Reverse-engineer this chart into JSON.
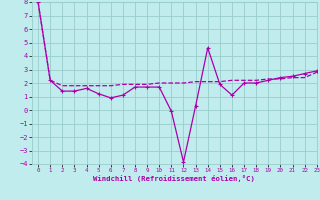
{
  "xlabel": "Windchill (Refroidissement éolien,°C)",
  "xlim": [
    -0.5,
    23
  ],
  "ylim": [
    -4,
    8
  ],
  "xticks": [
    0,
    1,
    2,
    3,
    4,
    5,
    6,
    7,
    8,
    9,
    10,
    11,
    12,
    13,
    14,
    15,
    16,
    17,
    18,
    19,
    20,
    21,
    22,
    23
  ],
  "yticks": [
    -4,
    -3,
    -2,
    -1,
    0,
    1,
    2,
    3,
    4,
    5,
    6,
    7,
    8
  ],
  "bg_color": "#c0ecee",
  "grid_color": "#99cccc",
  "line_color": "#aa00aa",
  "x": [
    0,
    1,
    2,
    3,
    4,
    5,
    6,
    7,
    8,
    9,
    10,
    11,
    12,
    13,
    14,
    15,
    16,
    17,
    18,
    19,
    20,
    21,
    22,
    23
  ],
  "y_zigzag": [
    8,
    2.2,
    1.4,
    1.4,
    1.6,
    1.2,
    0.9,
    1.1,
    1.7,
    1.7,
    1.7,
    -0.1,
    -3.85,
    0.3,
    4.6,
    1.9,
    1.1,
    2.0,
    2.0,
    2.2,
    2.4,
    2.5,
    2.7,
    2.9
  ],
  "y_smooth": [
    8,
    2.2,
    1.8,
    1.8,
    1.8,
    1.8,
    1.8,
    1.9,
    1.9,
    1.9,
    2.0,
    2.0,
    2.0,
    2.1,
    2.1,
    2.1,
    2.2,
    2.2,
    2.2,
    2.3,
    2.3,
    2.4,
    2.4,
    2.8
  ]
}
